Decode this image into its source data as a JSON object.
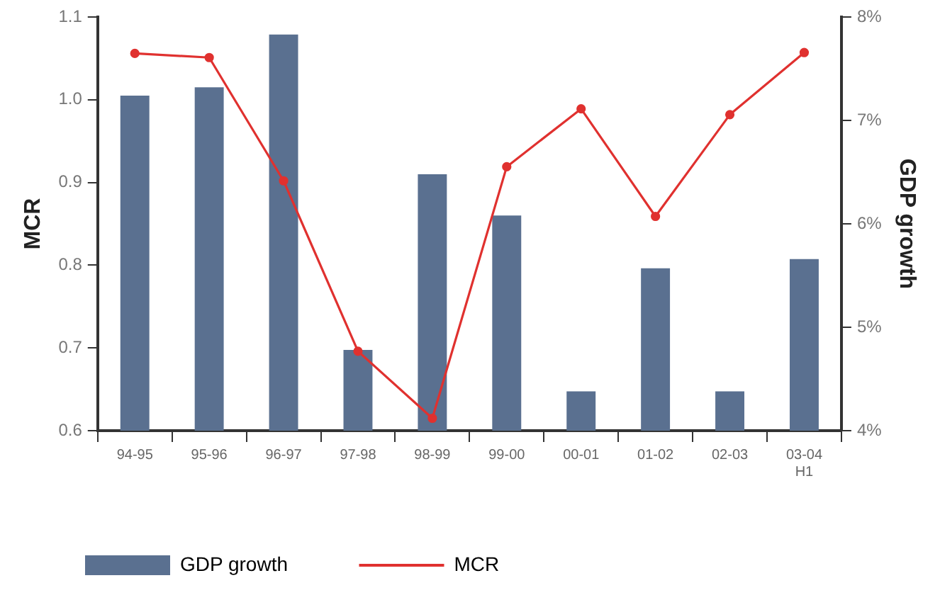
{
  "chart_data": {
    "type": "bar",
    "ylabel": "MCR",
    "y2label": "GDP growth",
    "categories": [
      "94-95",
      "95-96",
      "96-97",
      "97-98",
      "98-99",
      "99-00",
      "00-01",
      "01-02",
      "02-03",
      "03-04\nH1"
    ],
    "series": [
      {
        "name": "GDP growth",
        "axis": "y2",
        "color": "#5a7090",
        "values": [
          7.24,
          7.32,
          7.83,
          4.78,
          6.48,
          6.08,
          4.38,
          5.57,
          4.38,
          5.66
        ]
      },
      {
        "name": "MCR",
        "type": "line",
        "axis": "y",
        "color": "#e0312f",
        "marker": "circle",
        "values": [
          1.056,
          1.051,
          0.902,
          0.696,
          0.615,
          0.919,
          0.989,
          0.859,
          0.982,
          1.057
        ]
      }
    ],
    "ylim": [
      0.6,
      1.1
    ],
    "yticks": [
      0.6,
      0.7,
      0.8,
      0.9,
      {
        "value": 1,
        "label": "1.0"
      },
      1.1
    ],
    "y2lim": [
      4,
      8
    ],
    "y2ticks": [
      {
        "value": 4,
        "label": "4%"
      },
      {
        "value": 5,
        "label": "5%"
      },
      {
        "value": 6,
        "label": "6%"
      },
      {
        "value": 7,
        "label": "7%"
      },
      {
        "value": 8,
        "label": "8%"
      }
    ],
    "grid": false,
    "legend": "bottom"
  }
}
